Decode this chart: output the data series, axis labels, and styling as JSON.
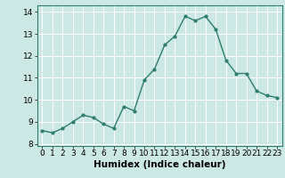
{
  "x": [
    0,
    1,
    2,
    3,
    4,
    5,
    6,
    7,
    8,
    9,
    10,
    11,
    12,
    13,
    14,
    15,
    16,
    17,
    18,
    19,
    20,
    21,
    22,
    23
  ],
  "y": [
    8.6,
    8.5,
    8.7,
    9.0,
    9.3,
    9.2,
    8.9,
    8.7,
    9.7,
    9.5,
    10.9,
    11.4,
    12.5,
    12.9,
    13.8,
    13.6,
    13.8,
    13.2,
    11.8,
    11.2,
    11.2,
    10.4,
    10.2,
    10.1
  ],
  "line_color": "#2e7d6e",
  "marker": "o",
  "marker_size": 2.0,
  "line_width": 1.0,
  "bg_color": "#cce8e4",
  "grid_color": "#ffffff",
  "xlabel": "Humidex (Indice chaleur)",
  "xlabel_fontsize": 7.5,
  "xlabel_bold": true,
  "ylim": [
    7.9,
    14.3
  ],
  "xlim": [
    -0.5,
    23.5
  ],
  "yticks": [
    8,
    9,
    10,
    11,
    12,
    13,
    14
  ],
  "xticks": [
    0,
    1,
    2,
    3,
    4,
    5,
    6,
    7,
    8,
    9,
    10,
    11,
    12,
    13,
    14,
    15,
    16,
    17,
    18,
    19,
    20,
    21,
    22,
    23
  ],
  "tick_fontsize": 6.5
}
